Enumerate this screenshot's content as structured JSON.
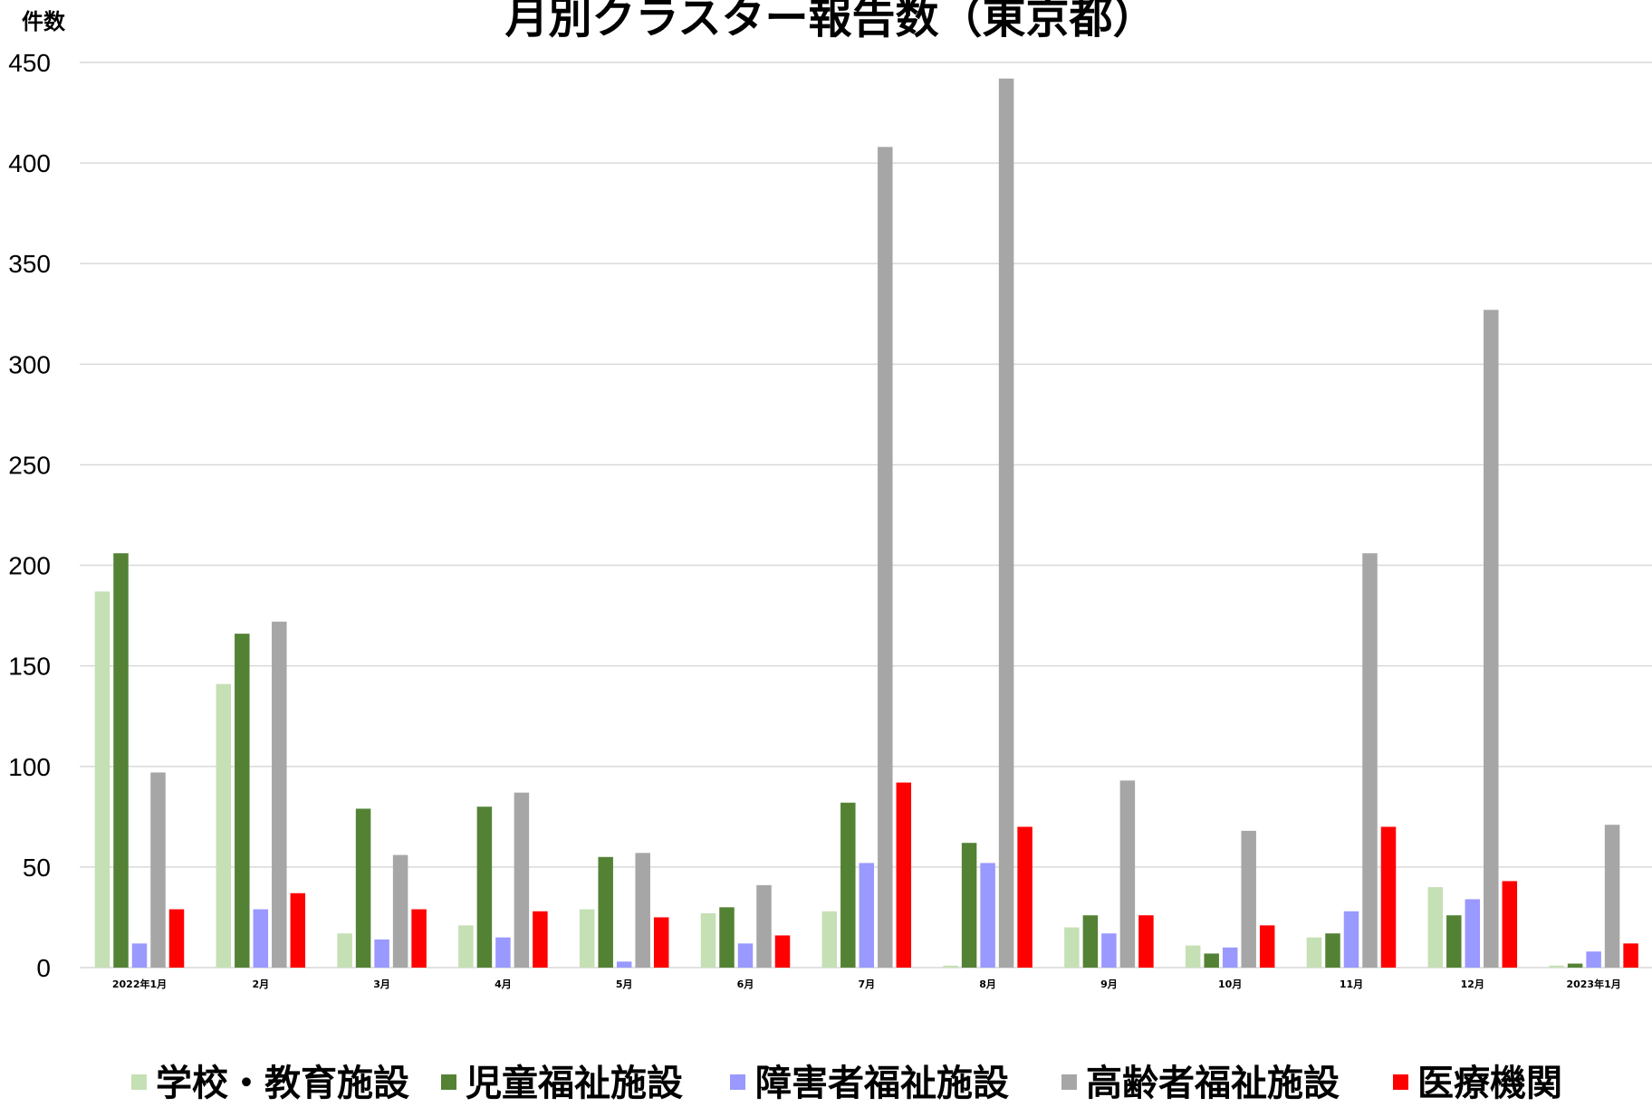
{
  "chart_data": {
    "type": "bar",
    "title": "月別クラスター報告数（東京都）",
    "ylabel": "件数",
    "xlabel": "",
    "ylim": [
      0,
      450
    ],
    "yticks": [
      0,
      50,
      100,
      150,
      200,
      250,
      300,
      350,
      400,
      450
    ],
    "grid": true,
    "legend_position": "bottom",
    "categories": [
      "2022年1月",
      "2月",
      "3月",
      "4月",
      "5月",
      "6月",
      "7月",
      "8月",
      "9月",
      "10月",
      "11月",
      "12月",
      "2023年1月"
    ],
    "series": [
      {
        "name": "学校・教育施設",
        "color": "#c5e0b4",
        "values": [
          187,
          141,
          17,
          21,
          29,
          27,
          28,
          1,
          20,
          11,
          15,
          40,
          1
        ]
      },
      {
        "name": "児童福祉施設",
        "color": "#548235",
        "values": [
          206,
          166,
          79,
          80,
          55,
          30,
          82,
          62,
          26,
          7,
          17,
          26,
          2
        ]
      },
      {
        "name": "障害者福祉施設",
        "color": "#9999ff",
        "values": [
          12,
          29,
          14,
          15,
          3,
          12,
          52,
          52,
          17,
          10,
          28,
          34,
          8
        ]
      },
      {
        "name": "高齢者福祉施設",
        "color": "#a6a6a6",
        "values": [
          97,
          172,
          56,
          87,
          57,
          41,
          408,
          442,
          93,
          68,
          206,
          327,
          71
        ]
      },
      {
        "name": "医療機関",
        "color": "#ff0000",
        "values": [
          29,
          37,
          29,
          28,
          25,
          16,
          92,
          70,
          26,
          21,
          70,
          43,
          12
        ]
      }
    ]
  }
}
